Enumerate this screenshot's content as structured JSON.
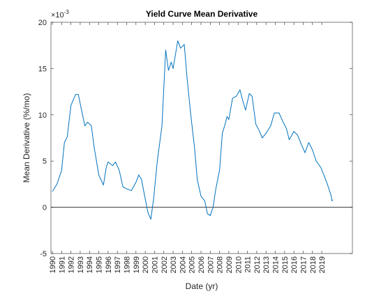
{
  "chart_data": {
    "type": "line",
    "title": "Yield Curve Mean Derivative",
    "x_label": "Date (yr)",
    "y_label": "Mean Derivative (%/mo)",
    "y_exponent": {
      "base": "×10",
      "power": "-3"
    },
    "xlim": [
      1989.85,
      2022.3
    ],
    "ylim": [
      -5,
      20
    ],
    "xticks": [
      1990,
      1991,
      1992,
      1993,
      1994,
      1995,
      1996,
      1997,
      1998,
      1999,
      2000,
      2001,
      2002,
      2003,
      2004,
      2005,
      2006,
      2007,
      2008,
      2009,
      2010,
      2011,
      2012,
      2013,
      2014,
      2015,
      2016,
      2017,
      2018,
      2019
    ],
    "yticks": [
      -5,
      0,
      5,
      10,
      15,
      20
    ],
    "x": [
      1990.0,
      1990.5,
      1991.0,
      1991.3,
      1991.6,
      1992.0,
      1992.5,
      1992.8,
      1993.0,
      1993.5,
      1993.8,
      1994.2,
      1994.5,
      1995.0,
      1995.5,
      1995.8,
      1996.0,
      1996.5,
      1996.8,
      1997.2,
      1997.6,
      1998.0,
      1998.5,
      1999.0,
      1999.3,
      1999.6,
      2000.0,
      2000.3,
      2000.6,
      2000.9,
      2001.3,
      2001.8,
      2002.2,
      2002.5,
      2002.8,
      2003.0,
      2003.5,
      2003.8,
      2004.2,
      2004.5,
      2004.9,
      2005.3,
      2005.6,
      2006.0,
      2006.4,
      2006.7,
      2007.0,
      2007.3,
      2007.6,
      2008.0,
      2008.3,
      2008.6,
      2008.8,
      2009.0,
      2009.4,
      2009.8,
      2010.2,
      2010.5,
      2010.8,
      2011.2,
      2011.5,
      2011.9,
      2012.3,
      2012.6,
      2013.0,
      2013.5,
      2013.9,
      2014.4,
      2014.8,
      2015.2,
      2015.5,
      2016.0,
      2016.4,
      2016.8,
      2017.2,
      2017.6,
      2018.0,
      2018.4,
      2018.9,
      2019.3,
      2019.6,
      2020.0,
      2020.1,
      2020.2
    ],
    "series": [
      {
        "color": "#0072bd",
        "values": [
          1.7,
          2.5,
          4,
          7,
          7.6,
          11,
          12.2,
          12.2,
          11.2,
          8.8,
          9.2,
          8.8,
          6.5,
          3.5,
          2.4,
          4.3,
          4.9,
          4.5,
          4.9,
          4,
          2.2,
          2,
          1.8,
          2.7,
          3.5,
          3,
          0.9,
          -0.6,
          -1.3,
          0.9,
          5,
          8.8,
          17,
          14.8,
          15.7,
          15,
          18,
          17.2,
          17.6,
          14,
          10,
          6.5,
          3,
          1.2,
          0.7,
          -0.7,
          -0.9,
          0,
          2,
          4,
          8,
          9,
          9.8,
          9.5,
          11.8,
          12,
          12.7,
          11.5,
          10.5,
          12.3,
          12,
          9,
          8.2,
          7.5,
          8,
          8.8,
          10.2,
          10.2,
          9.3,
          8.5,
          7.3,
          8.2,
          7.8,
          6.8,
          5.9,
          7,
          6.2,
          5,
          4.3,
          3.3,
          2.5,
          1.3,
          0.7,
          0.8
        ]
      }
    ]
  }
}
